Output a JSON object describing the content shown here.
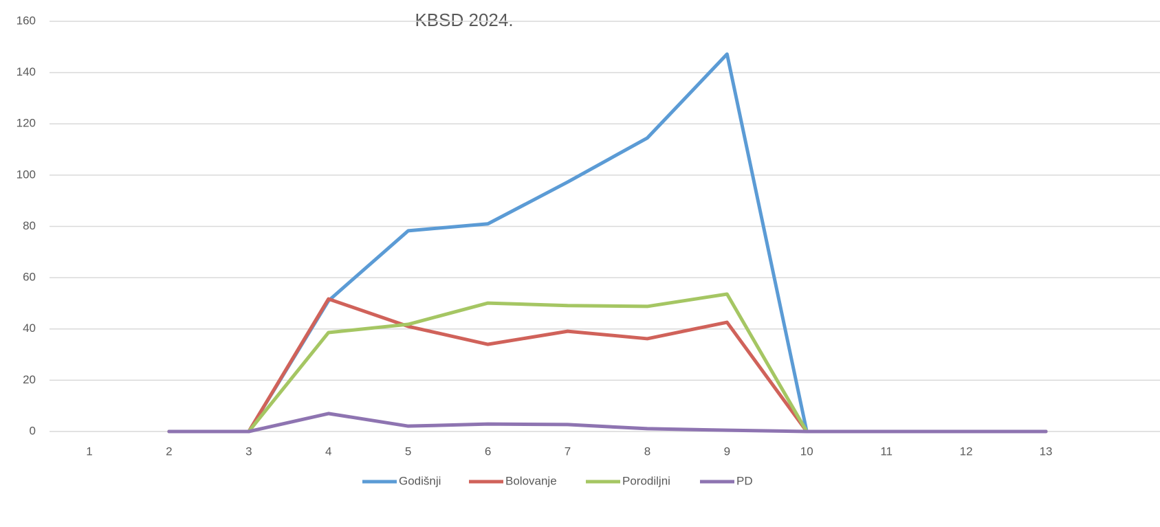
{
  "chart_data": {
    "type": "line",
    "title": "KBSD 2024.",
    "categories": [
      "1",
      "2",
      "3",
      "4",
      "5",
      "6",
      "7",
      "8",
      "9",
      "10",
      "11",
      "12",
      "13"
    ],
    "series": [
      {
        "name": "Godišnji",
        "color": "#5b9bd5",
        "values": [
          null,
          0,
          0,
          51,
          78.3,
          81,
          97.3,
          114.5,
          147.2,
          0,
          0,
          0,
          0
        ]
      },
      {
        "name": "Bolovanje",
        "color": "#d0625a",
        "values": [
          null,
          0,
          0,
          51.7,
          41,
          34,
          39.1,
          36.2,
          42.6,
          0,
          0,
          0,
          0
        ]
      },
      {
        "name": "Porodiljni",
        "color": "#a5c663",
        "values": [
          null,
          0,
          0,
          38.6,
          41.8,
          50.1,
          49.1,
          48.8,
          53.6,
          0,
          0,
          0,
          0
        ]
      },
      {
        "name": "PD",
        "color": "#8e74b1",
        "values": [
          null,
          0,
          0,
          7,
          2.1,
          2.9,
          2.7,
          1.1,
          0.5,
          0,
          0,
          0,
          0
        ]
      }
    ],
    "ylim": [
      0,
      160
    ],
    "yticks": [
      0,
      20,
      40,
      60,
      80,
      100,
      120,
      140,
      160
    ],
    "grid": true,
    "legend": "bottom"
  }
}
